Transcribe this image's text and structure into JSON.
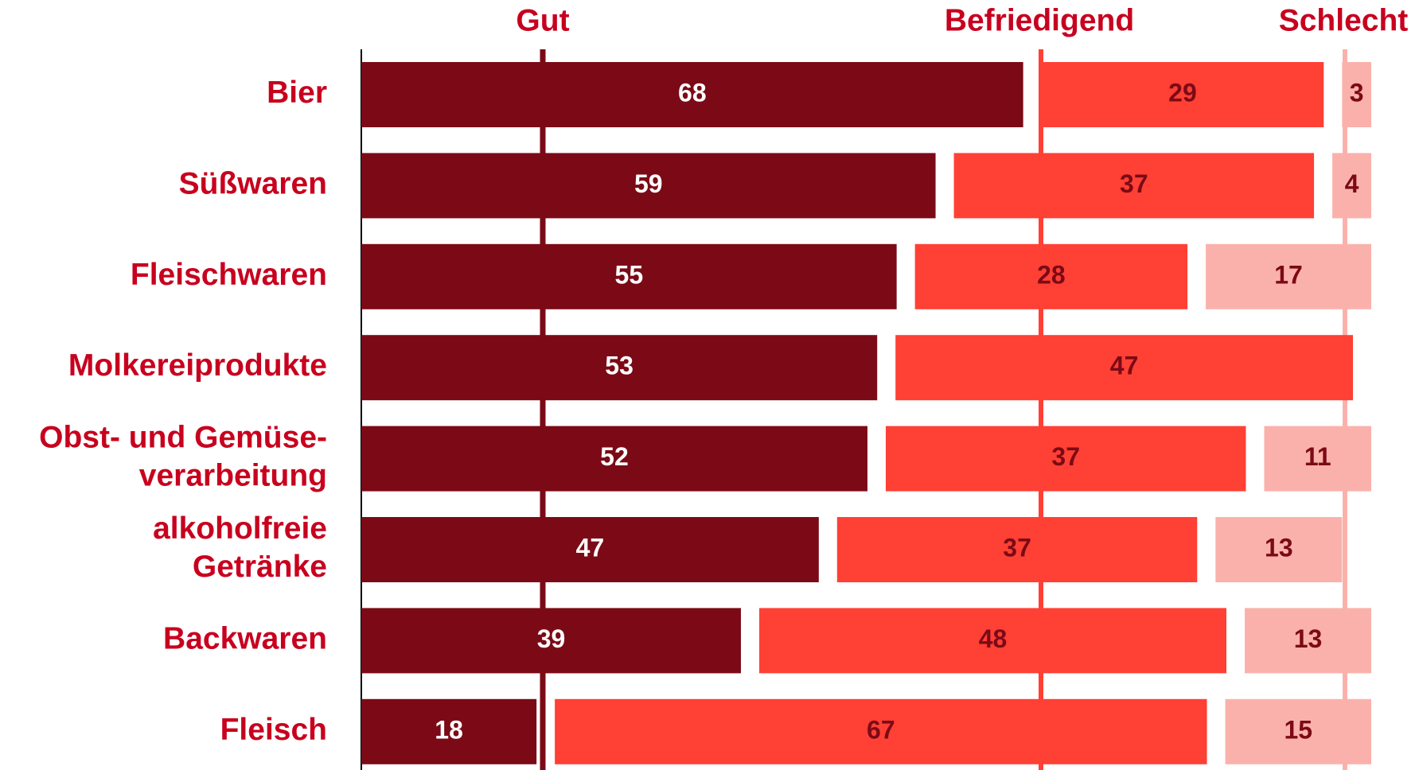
{
  "chart_data": {
    "type": "stacked-bar",
    "categories": [
      "Bier",
      "Süßwaren",
      "Fleischwaren",
      "Molkereiprodukte",
      "Obst- und Gemüse-\nverarbeitung",
      "alkoholfreie\nGetränke",
      "Backwaren",
      "Fleisch"
    ],
    "series": [
      {
        "name": "Gut",
        "color": "#7b0a16",
        "values": [
          68,
          59,
          55,
          53,
          52,
          47,
          39,
          18
        ]
      },
      {
        "name": "Befriedigend",
        "color": "#ff4035",
        "values": [
          29,
          37,
          28,
          47,
          37,
          37,
          48,
          67
        ]
      },
      {
        "name": "Schlecht",
        "color": "#fbb1ab",
        "values": [
          3,
          4,
          17,
          null,
          11,
          13,
          13,
          15
        ]
      }
    ]
  }
}
